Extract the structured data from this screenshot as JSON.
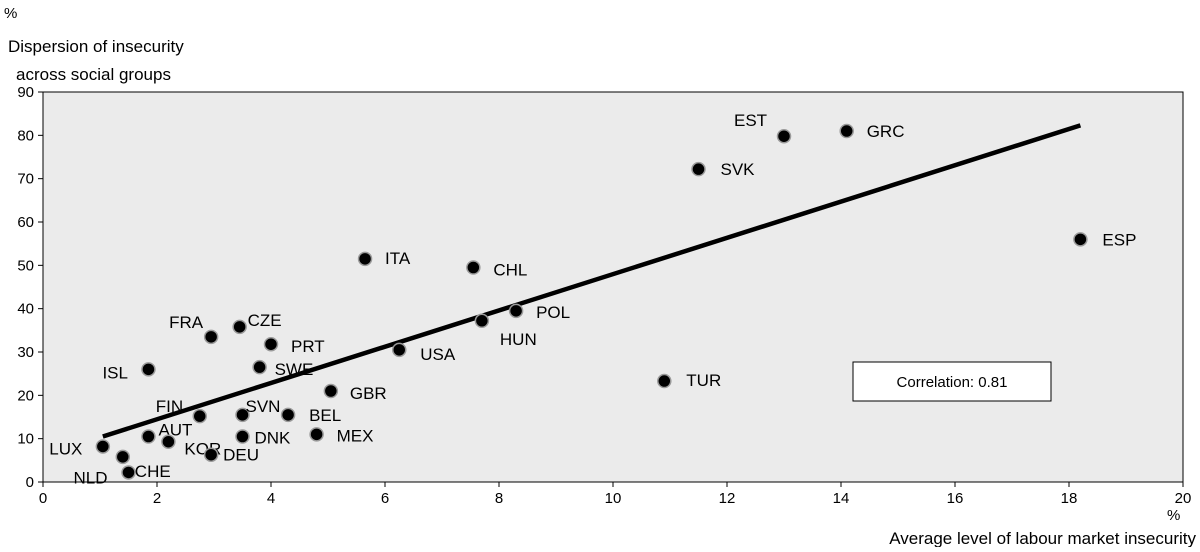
{
  "chart_data": {
    "type": "scatter",
    "title": "",
    "xlabel": "Average level of labour market insecurity",
    "xunit": "%",
    "ylabel_line1": "Dispersion of insecurity",
    "ylabel_line2": "across social groups",
    "yunit": "%",
    "xlim": [
      0,
      20
    ],
    "ylim": [
      0,
      90
    ],
    "xticks": [
      0,
      2,
      4,
      6,
      8,
      10,
      12,
      14,
      16,
      18,
      20
    ],
    "yticks": [
      0,
      10,
      20,
      30,
      40,
      50,
      60,
      70,
      80,
      90
    ],
    "grid": false,
    "points": [
      {
        "label": "LUX",
        "x": 1.05,
        "y": 8.2
      },
      {
        "label": "NLD",
        "x": 1.5,
        "y": 2.2
      },
      {
        "label": "CHE",
        "x": 1.4,
        "y": 5.8
      },
      {
        "label": "AUT",
        "x": 1.85,
        "y": 10.5
      },
      {
        "label": "KOR",
        "x": 2.2,
        "y": 9.3
      },
      {
        "label": "ISL",
        "x": 1.85,
        "y": 26.0
      },
      {
        "label": "FIN",
        "x": 2.75,
        "y": 15.2
      },
      {
        "label": "FRA",
        "x": 2.95,
        "y": 33.5
      },
      {
        "label": "DEU",
        "x": 2.95,
        "y": 6.3
      },
      {
        "label": "CZE",
        "x": 3.45,
        "y": 35.8
      },
      {
        "label": "DNK",
        "x": 3.5,
        "y": 10.5
      },
      {
        "label": "SVN",
        "x": 3.5,
        "y": 15.5
      },
      {
        "label": "SWE",
        "x": 3.8,
        "y": 26.5
      },
      {
        "label": "PRT",
        "x": 4.0,
        "y": 31.8
      },
      {
        "label": "BEL",
        "x": 4.3,
        "y": 15.5
      },
      {
        "label": "MEX",
        "x": 4.8,
        "y": 11.0
      },
      {
        "label": "GBR",
        "x": 5.05,
        "y": 21.0
      },
      {
        "label": "ITA",
        "x": 5.65,
        "y": 51.5
      },
      {
        "label": "USA",
        "x": 6.25,
        "y": 30.5
      },
      {
        "label": "CHL",
        "x": 7.55,
        "y": 49.5
      },
      {
        "label": "HUN",
        "x": 7.7,
        "y": 37.2
      },
      {
        "label": "POL",
        "x": 8.3,
        "y": 39.5
      },
      {
        "label": "TUR",
        "x": 10.9,
        "y": 23.3
      },
      {
        "label": "SVK",
        "x": 11.5,
        "y": 72.2
      },
      {
        "label": "EST",
        "x": 13.0,
        "y": 79.8
      },
      {
        "label": "GRC",
        "x": 14.1,
        "y": 81.0
      },
      {
        "label": "ESP",
        "x": 18.2,
        "y": 56.0
      }
    ],
    "trendline": {
      "x1": 1.05,
      "y1": 10.5,
      "x2": 18.2,
      "y2": 82.3
    },
    "annotation": "Correlation: 0.81"
  }
}
